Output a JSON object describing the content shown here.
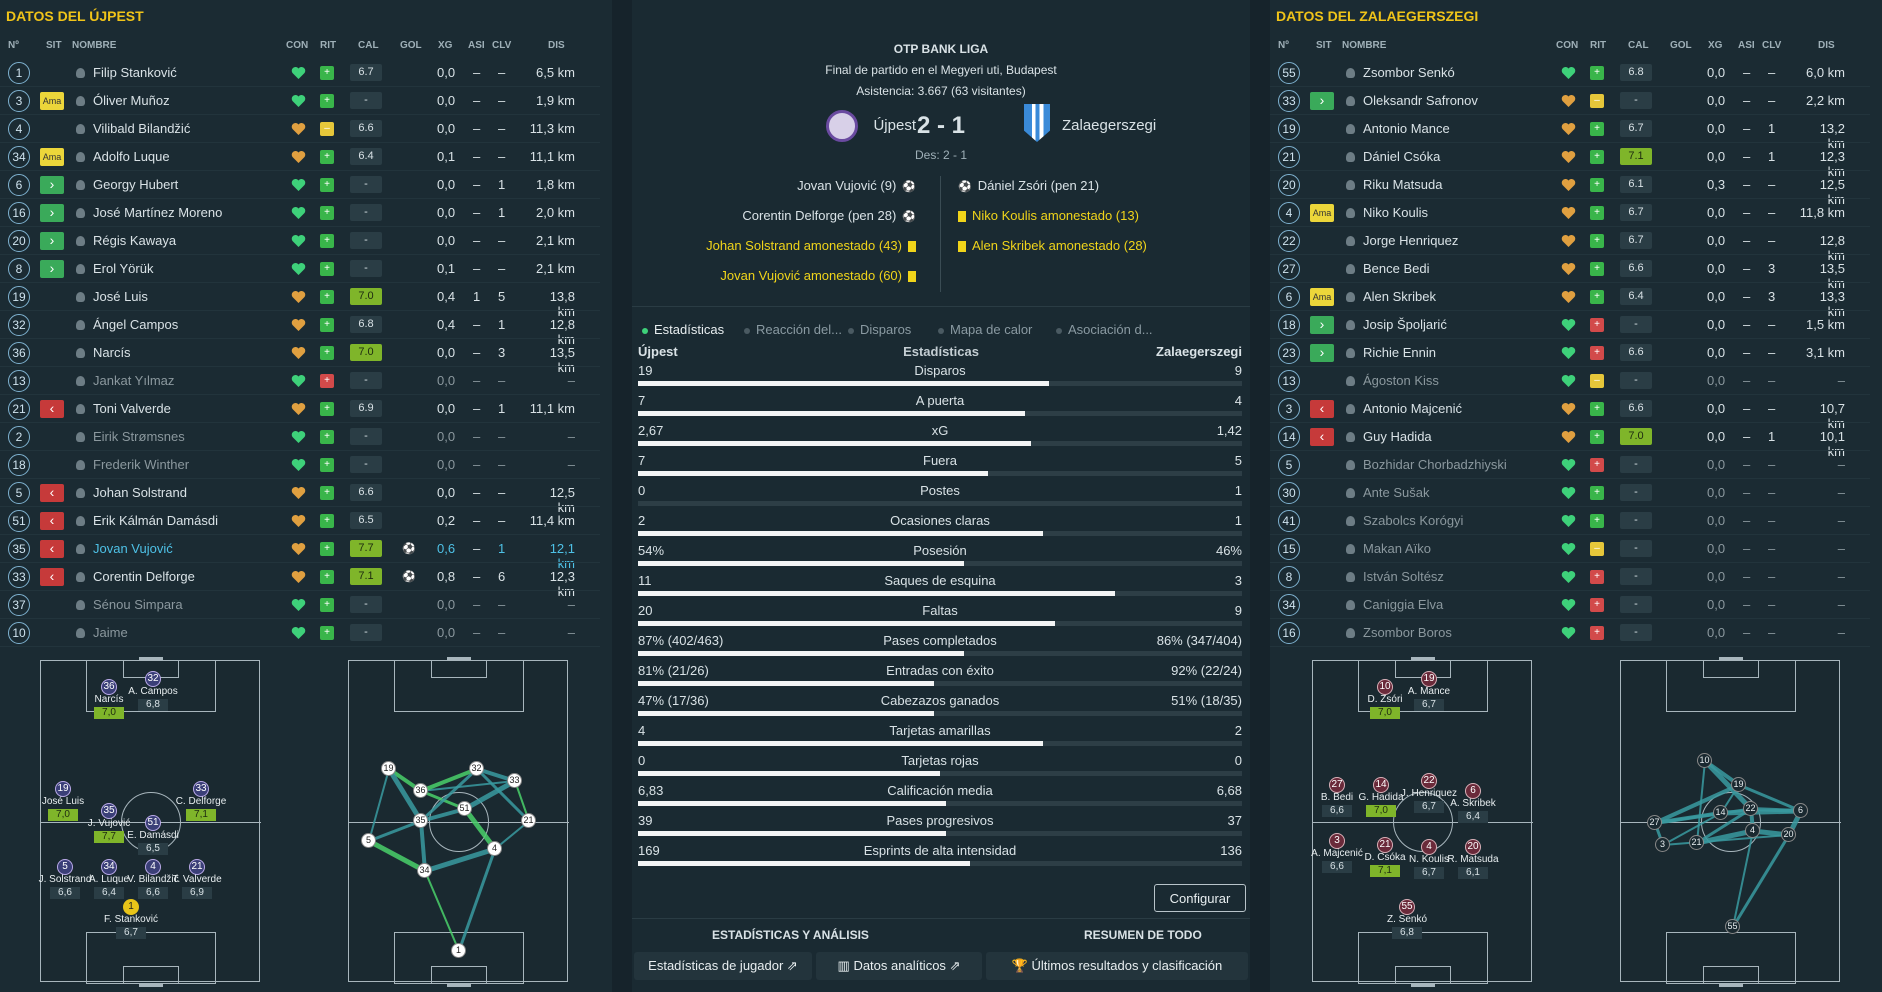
{
  "left": {
    "title": "DATOS DEL ÚJPEST"
  },
  "right": {
    "title": "DATOS DEL ZALAEGERSZEGI"
  },
  "columns": {
    "num": "Nº",
    "sit": "SIT",
    "nombre": "NOMBRE",
    "con": "CON",
    "rit": "RIT",
    "cal": "CAL",
    "gol": "GOL",
    "xg": "XG",
    "asi": "ASI",
    "clv": "CLV",
    "dis": "DIS"
  },
  "colors": {
    "accent": "#f0c419",
    "rating_hi": "#7fb52a",
    "sub_in": "#3aaa5a",
    "sub_out": "#c63a3a",
    "card": "#f0d41a"
  },
  "left_players": [
    {
      "num": "1",
      "sit": "",
      "name": "Filip Stanković",
      "con": "green",
      "rit": "green",
      "cal": "6.7",
      "hi": false,
      "gol": "",
      "xg": "0,0",
      "asi": "–",
      "clv": "–",
      "dis": "6,5 km"
    },
    {
      "num": "3",
      "sit": "Ama",
      "name": "Óliver Muñoz",
      "con": "green",
      "rit": "green",
      "cal": "-",
      "hi": false,
      "gol": "",
      "xg": "0,0",
      "asi": "–",
      "clv": "–",
      "dis": "1,9 km"
    },
    {
      "num": "4",
      "sit": "",
      "name": "Vilibald Bilandžić",
      "con": "orange",
      "rit": "yellow",
      "cal": "6.6",
      "hi": false,
      "gol": "",
      "xg": "0,0",
      "asi": "–",
      "clv": "–",
      "dis": "11,3 km"
    },
    {
      "num": "34",
      "sit": "Ama",
      "name": "Adolfo Luque",
      "con": "orange",
      "rit": "green",
      "cal": "6.4",
      "hi": false,
      "gol": "",
      "xg": "0,1",
      "asi": "–",
      "clv": "–",
      "dis": "11,1 km"
    },
    {
      "num": "6",
      "sit": "in",
      "name": "Georgy Hubert",
      "con": "green",
      "rit": "green",
      "cal": "-",
      "hi": false,
      "gol": "",
      "xg": "0,0",
      "asi": "–",
      "clv": "1",
      "dis": "1,8 km"
    },
    {
      "num": "16",
      "sit": "in",
      "name": "José Martínez Moreno",
      "con": "green",
      "rit": "green",
      "cal": "-",
      "hi": false,
      "gol": "",
      "xg": "0,0",
      "asi": "–",
      "clv": "1",
      "dis": "2,0 km"
    },
    {
      "num": "20",
      "sit": "in",
      "name": "Régis Kawaya",
      "con": "green",
      "rit": "green",
      "cal": "-",
      "hi": false,
      "gol": "",
      "xg": "0,0",
      "asi": "–",
      "clv": "–",
      "dis": "2,1 km"
    },
    {
      "num": "8",
      "sit": "in",
      "name": "Erol Yörük",
      "con": "green",
      "rit": "green",
      "cal": "-",
      "hi": false,
      "gol": "",
      "xg": "0,1",
      "asi": "–",
      "clv": "–",
      "dis": "2,1 km"
    },
    {
      "num": "19",
      "sit": "",
      "name": "José Luis",
      "con": "orange",
      "rit": "green",
      "cal": "7.0",
      "hi": true,
      "gol": "",
      "xg": "0,4",
      "asi": "1",
      "clv": "5",
      "dis": "13,8 km"
    },
    {
      "num": "32",
      "sit": "",
      "name": "Ángel Campos",
      "con": "orange",
      "rit": "green",
      "cal": "6.8",
      "hi": false,
      "gol": "",
      "xg": "0,4",
      "asi": "–",
      "clv": "1",
      "dis": "12,8 km"
    },
    {
      "num": "36",
      "sit": "",
      "name": "Narcís",
      "con": "orange",
      "rit": "green",
      "cal": "7.0",
      "hi": true,
      "gol": "",
      "xg": "0,0",
      "asi": "–",
      "clv": "3",
      "dis": "13,5 km"
    },
    {
      "num": "13",
      "sit": "",
      "name": "Jankat Yılmaz",
      "con": "green",
      "rit": "red",
      "cal": "-",
      "hi": false,
      "gol": "",
      "xg": "0,0",
      "asi": "–",
      "clv": "–",
      "dis": "–",
      "dim": true
    },
    {
      "num": "21",
      "sit": "out",
      "name": "Toni Valverde",
      "con": "orange",
      "rit": "green",
      "cal": "6.9",
      "hi": false,
      "gol": "",
      "xg": "0,0",
      "asi": "–",
      "clv": "1",
      "dis": "11,1 km"
    },
    {
      "num": "2",
      "sit": "",
      "name": "Eirik Strømsnes",
      "con": "green",
      "rit": "green",
      "cal": "-",
      "hi": false,
      "gol": "",
      "xg": "0,0",
      "asi": "–",
      "clv": "–",
      "dis": "–",
      "dim": true
    },
    {
      "num": "18",
      "sit": "",
      "name": "Frederik Winther",
      "con": "green",
      "rit": "green",
      "cal": "-",
      "hi": false,
      "gol": "",
      "xg": "0,0",
      "asi": "–",
      "clv": "–",
      "dis": "–",
      "dim": true
    },
    {
      "num": "5",
      "sit": "out",
      "name": "Johan Solstrand",
      "con": "orange",
      "rit": "green",
      "cal": "6.6",
      "hi": false,
      "gol": "",
      "xg": "0,0",
      "asi": "–",
      "clv": "–",
      "dis": "12,5 km"
    },
    {
      "num": "51",
      "sit": "out",
      "name": "Erik Kálmán Damásdi",
      "con": "orange",
      "rit": "green",
      "cal": "6.5",
      "hi": false,
      "gol": "",
      "xg": "0,2",
      "asi": "–",
      "clv": "–",
      "dis": "11,4 km"
    },
    {
      "num": "35",
      "sit": "out",
      "name": "Jovan Vujović",
      "con": "orange",
      "rit": "green",
      "cal": "7.7",
      "hi": true,
      "gol": "⚽",
      "xg": "0,6",
      "asi": "–",
      "clv": "1",
      "dis": "12,1 km",
      "hl": true
    },
    {
      "num": "33",
      "sit": "out",
      "name": "Corentin Delforge",
      "con": "orange",
      "rit": "green",
      "cal": "7.1",
      "hi": true,
      "gol": "⚽",
      "xg": "0,8",
      "asi": "–",
      "clv": "6",
      "dis": "12,3 km"
    },
    {
      "num": "37",
      "sit": "",
      "name": "Sénou Simpara",
      "con": "green",
      "rit": "green",
      "cal": "-",
      "hi": false,
      "gol": "",
      "xg": "0,0",
      "asi": "–",
      "clv": "–",
      "dis": "–",
      "dim": true
    },
    {
      "num": "10",
      "sit": "",
      "name": "Jaime",
      "con": "green",
      "rit": "green",
      "cal": "-",
      "hi": false,
      "gol": "",
      "xg": "0,0",
      "asi": "–",
      "clv": "–",
      "dis": "–",
      "dim": true
    }
  ],
  "right_players": [
    {
      "num": "55",
      "sit": "",
      "name": "Zsombor Senkó",
      "con": "green",
      "rit": "green",
      "cal": "6.8",
      "hi": false,
      "gol": "",
      "xg": "0,0",
      "asi": "–",
      "clv": "–",
      "dis": "6,0 km"
    },
    {
      "num": "33",
      "sit": "in",
      "name": "Oleksandr Safronov",
      "con": "orange",
      "rit": "yellow",
      "cal": "-",
      "hi": false,
      "gol": "",
      "xg": "0,0",
      "asi": "–",
      "clv": "–",
      "dis": "2,2 km"
    },
    {
      "num": "19",
      "sit": "",
      "name": "Antonio Mance",
      "con": "orange",
      "rit": "green",
      "cal": "6.7",
      "hi": false,
      "gol": "",
      "xg": "0,0",
      "asi": "–",
      "clv": "1",
      "dis": "13,2 km"
    },
    {
      "num": "21",
      "sit": "",
      "name": "Dániel Csóka",
      "con": "orange",
      "rit": "green",
      "cal": "7.1",
      "hi": true,
      "gol": "",
      "xg": "0,0",
      "asi": "–",
      "clv": "1",
      "dis": "12,3 km"
    },
    {
      "num": "20",
      "sit": "",
      "name": "Riku Matsuda",
      "con": "orange",
      "rit": "green",
      "cal": "6.1",
      "hi": false,
      "gol": "",
      "xg": "0,3",
      "asi": "–",
      "clv": "–",
      "dis": "12,5 km"
    },
    {
      "num": "4",
      "sit": "Ama",
      "name": "Niko Koulis",
      "con": "orange",
      "rit": "green",
      "cal": "6.7",
      "hi": false,
      "gol": "",
      "xg": "0,0",
      "asi": "–",
      "clv": "–",
      "dis": "11,8 km"
    },
    {
      "num": "22",
      "sit": "",
      "name": "Jorge Henriquez",
      "con": "orange",
      "rit": "green",
      "cal": "6.7",
      "hi": false,
      "gol": "",
      "xg": "0,0",
      "asi": "–",
      "clv": "–",
      "dis": "12,8 km"
    },
    {
      "num": "27",
      "sit": "",
      "name": "Bence Bedi",
      "con": "orange",
      "rit": "green",
      "cal": "6.6",
      "hi": false,
      "gol": "",
      "xg": "0,0",
      "asi": "–",
      "clv": "3",
      "dis": "13,5 km"
    },
    {
      "num": "6",
      "sit": "Ama",
      "name": "Alen Skribek",
      "con": "orange",
      "rit": "green",
      "cal": "6.4",
      "hi": false,
      "gol": "",
      "xg": "0,0",
      "asi": "–",
      "clv": "3",
      "dis": "13,3 km"
    },
    {
      "num": "18",
      "sit": "in",
      "name": "Josip Špoljarić",
      "con": "green",
      "rit": "red",
      "cal": "-",
      "hi": false,
      "gol": "",
      "xg": "0,0",
      "asi": "–",
      "clv": "–",
      "dis": "1,5 km"
    },
    {
      "num": "23",
      "sit": "in",
      "name": "Richie Ennin",
      "con": "green",
      "rit": "red",
      "cal": "6.6",
      "hi": false,
      "gol": "",
      "xg": "0,0",
      "asi": "–",
      "clv": "–",
      "dis": "3,1 km"
    },
    {
      "num": "13",
      "sit": "",
      "name": "Ágoston Kiss",
      "con": "green",
      "rit": "yellow",
      "cal": "-",
      "hi": false,
      "gol": "",
      "xg": "0,0",
      "asi": "–",
      "clv": "–",
      "dis": "–",
      "dim": true
    },
    {
      "num": "3",
      "sit": "out",
      "name": "Antonio Majcenić",
      "con": "orange",
      "rit": "green",
      "cal": "6.6",
      "hi": false,
      "gol": "",
      "xg": "0,0",
      "asi": "–",
      "clv": "–",
      "dis": "10,7 km"
    },
    {
      "num": "14",
      "sit": "out",
      "name": "Guy Hadida",
      "con": "orange",
      "rit": "green",
      "cal": "7.0",
      "hi": true,
      "gol": "",
      "xg": "0,0",
      "asi": "–",
      "clv": "1",
      "dis": "10,1 km"
    },
    {
      "num": "5",
      "sit": "",
      "name": "Bozhidar Chorbadzhiyski",
      "con": "green",
      "rit": "red",
      "cal": "-",
      "hi": false,
      "gol": "",
      "xg": "0,0",
      "asi": "–",
      "clv": "–",
      "dis": "–",
      "dim": true
    },
    {
      "num": "30",
      "sit": "",
      "name": "Ante Sušak",
      "con": "green",
      "rit": "green",
      "cal": "-",
      "hi": false,
      "gol": "",
      "xg": "0,0",
      "asi": "–",
      "clv": "–",
      "dis": "–",
      "dim": true
    },
    {
      "num": "41",
      "sit": "",
      "name": "Szabolcs Korógyi",
      "con": "green",
      "rit": "green",
      "cal": "-",
      "hi": false,
      "gol": "",
      "xg": "0,0",
      "asi": "–",
      "clv": "–",
      "dis": "–",
      "dim": true
    },
    {
      "num": "15",
      "sit": "",
      "name": "Makan Aïko",
      "con": "green",
      "rit": "yellow",
      "cal": "-",
      "hi": false,
      "gol": "",
      "xg": "0,0",
      "asi": "–",
      "clv": "–",
      "dis": "–",
      "dim": true
    },
    {
      "num": "8",
      "sit": "",
      "name": "István Soltész",
      "con": "green",
      "rit": "red",
      "cal": "-",
      "hi": false,
      "gol": "",
      "xg": "0,0",
      "asi": "–",
      "clv": "–",
      "dis": "–",
      "dim": true
    },
    {
      "num": "34",
      "sit": "",
      "name": "Caniggia Elva",
      "con": "green",
      "rit": "red",
      "cal": "-",
      "hi": false,
      "gol": "",
      "xg": "0,0",
      "asi": "–",
      "clv": "–",
      "dis": "–",
      "dim": true
    },
    {
      "num": "16",
      "sit": "",
      "name": "Zsombor Boros",
      "con": "green",
      "rit": "red",
      "cal": "-",
      "hi": false,
      "gol": "",
      "xg": "0,0",
      "asi": "–",
      "clv": "–",
      "dis": "–",
      "dim": true
    }
  ],
  "match": {
    "league": "OTP BANK LIGA",
    "status": "Final de partido en el Megyeri uti, Budapest",
    "attendance": "Asistencia: 3.667 (63 visitantes)",
    "home": "Újpest",
    "away": "Zalaegerszegi",
    "score": "2 - 1",
    "half": "Des: 2 - 1",
    "home_events": [
      {
        "text": "Jovan Vujović (9)",
        "icon": "goal"
      },
      {
        "text": "Corentin Delforge (pen 28)",
        "icon": "goal"
      },
      {
        "text": "Johan Solstrand amonestado (43)",
        "icon": "card"
      },
      {
        "text": "Jovan Vujović amonestado (60)",
        "icon": "card"
      }
    ],
    "away_events": [
      {
        "text": "Dániel Zsóri (pen 21)",
        "icon": "goal"
      },
      {
        "text": "Niko Koulis amonestado (13)",
        "icon": "card"
      },
      {
        "text": "Alen Skribek amonestado (28)",
        "icon": "card"
      }
    ]
  },
  "tabs": [
    "Estadísticas",
    "Reacción del...",
    "Disparos",
    "Mapa de calor",
    "Asociación d..."
  ],
  "stats_header": {
    "home": "Újpest",
    "title": "Estadísticas",
    "away": "Zalaegerszegi"
  },
  "stats": [
    {
      "label": "Disparos",
      "home": "19",
      "away": "9",
      "home_frac": 0.68
    },
    {
      "label": "A puerta",
      "home": "7",
      "away": "4",
      "home_frac": 0.64
    },
    {
      "label": "xG",
      "home": "2,67",
      "away": "1,42",
      "home_frac": 0.65
    },
    {
      "label": "Fuera",
      "home": "7",
      "away": "5",
      "home_frac": 0.58
    },
    {
      "label": "Postes",
      "home": "0",
      "away": "1",
      "home_frac": 0.0
    },
    {
      "label": "Ocasiones claras",
      "home": "2",
      "away": "1",
      "home_frac": 0.67
    },
    {
      "label": "Posesión",
      "home": "54%",
      "away": "46%",
      "home_frac": 0.54
    },
    {
      "label": "Saques de esquina",
      "home": "11",
      "away": "3",
      "home_frac": 0.79
    },
    {
      "label": "Faltas",
      "home": "20",
      "away": "9",
      "home_frac": 0.69
    },
    {
      "label": "Pases completados",
      "home": "87% (402/463)",
      "away": "86% (347/404)",
      "home_frac": 0.54
    },
    {
      "label": "Entradas con éxito",
      "home": "81% (21/26)",
      "away": "92% (22/24)",
      "home_frac": 0.49
    },
    {
      "label": "Cabezazos ganados",
      "home": "47% (17/36)",
      "away": "51% (18/35)",
      "home_frac": 0.49
    },
    {
      "label": "Tarjetas amarillas",
      "home": "4",
      "away": "2",
      "home_frac": 0.67
    },
    {
      "label": "Tarjetas rojas",
      "home": "0",
      "away": "0",
      "home_frac": 0.5
    },
    {
      "label": "Calificación media",
      "home": "6,83",
      "away": "6,68",
      "home_frac": 0.51
    },
    {
      "label": "Pases progresivos",
      "home": "39",
      "away": "37",
      "home_frac": 0.51
    },
    {
      "label": "Esprints de alta intensidad",
      "home": "169",
      "away": "136",
      "home_frac": 0.55
    }
  ],
  "configurar": "Configurar",
  "sections": {
    "left": "ESTADÍSTICAS Y ANÁLISIS",
    "right": "RESUMEN DE TODO"
  },
  "buttons": {
    "player_stats": "Estadísticas de jugador",
    "analytics": "Datos analíticos",
    "results": "Últimos resultados y clasificación"
  },
  "left_formation": [
    {
      "num": "36",
      "name": "Narcís",
      "rating": "7,0",
      "hi": true
    },
    {
      "num": "32",
      "name": "A. Campos",
      "rating": "6,8",
      "hi": false
    },
    {
      "num": "19",
      "name": "José Luis",
      "rating": "7,0",
      "hi": true
    },
    {
      "num": "33",
      "name": "C. Delforge",
      "rating": "7,1",
      "hi": true
    },
    {
      "num": "35",
      "name": "J. Vujović",
      "rating": "7,7",
      "hi": true
    },
    {
      "num": "51",
      "name": "E. Damásdi",
      "rating": "6,5",
      "hi": false
    },
    {
      "num": "5",
      "name": "J. Solstrand",
      "rating": "6,6",
      "hi": false
    },
    {
      "num": "34",
      "name": "A. Luque",
      "rating": "6,4",
      "hi": false
    },
    {
      "num": "4",
      "name": "V. Bilandžić",
      "rating": "6,6",
      "hi": false
    },
    {
      "num": "21",
      "name": "T. Valverde",
      "rating": "6,9",
      "hi": false
    },
    {
      "num": "1",
      "name": "F. Stanković",
      "rating": "6,7",
      "hi": false
    }
  ],
  "right_formation": [
    {
      "num": "10",
      "name": "D. Zsóri",
      "rating": "7,0",
      "hi": true
    },
    {
      "num": "19",
      "name": "A. Mance",
      "rating": "6,7",
      "hi": false
    },
    {
      "num": "27",
      "name": "B. Bedi",
      "rating": "6,6",
      "hi": false
    },
    {
      "num": "14",
      "name": "G. Hadida",
      "rating": "7,0",
      "hi": true
    },
    {
      "num": "22",
      "name": "J. Henriquez",
      "rating": "6,7",
      "hi": false
    },
    {
      "num": "6",
      "name": "A. Skribek",
      "rating": "6,4",
      "hi": false
    },
    {
      "num": "3",
      "name": "A. Majcenić",
      "rating": "6,6",
      "hi": false
    },
    {
      "num": "21",
      "name": "D. Csóka",
      "rating": "7,1",
      "hi": true
    },
    {
      "num": "4",
      "name": "N. Koulis",
      "rating": "6,7",
      "hi": false
    },
    {
      "num": "20",
      "name": "R. Matsuda",
      "rating": "6,1",
      "hi": false
    },
    {
      "num": "55",
      "name": "Z. Senkó",
      "rating": "6,8",
      "hi": false
    }
  ],
  "left_passmap_nodes": [
    "19",
    "36",
    "32",
    "33",
    "35",
    "51",
    "21",
    "5",
    "34",
    "4",
    "1"
  ],
  "right_passmap_nodes": [
    "10",
    "19",
    "27",
    "14",
    "22",
    "6",
    "3",
    "21",
    "4",
    "20",
    "55"
  ]
}
